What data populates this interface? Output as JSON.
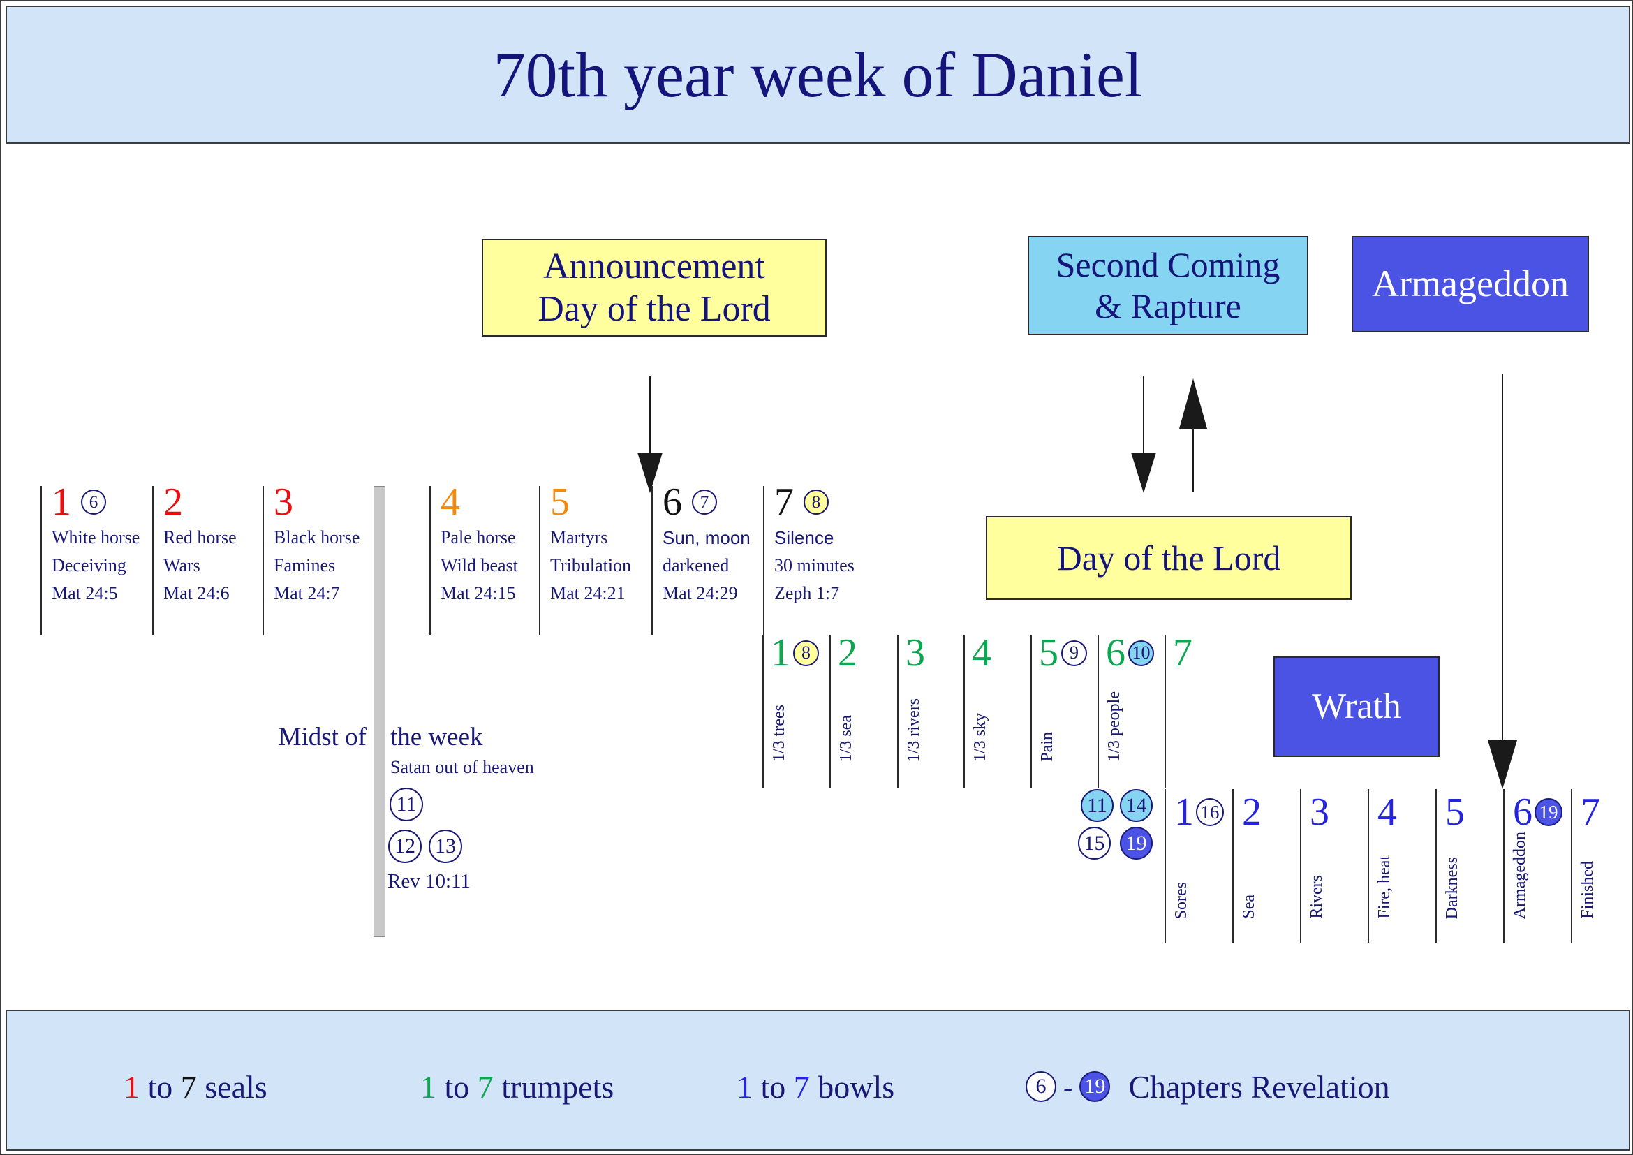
{
  "title": "70th year week of Daniel",
  "colors": {
    "band_background": "#d2e4f8",
    "navy_text": "#191975",
    "seal_red": "#e90f0f",
    "seal_orange": "#f5890a",
    "seal_black": "#111111",
    "trumpet_green": "#0ca750",
    "bowl_blue": "#2424e0",
    "chapter_yellow": "#ffff9e",
    "chapter_skyblue": "#85d4f2",
    "chapter_indigo": "#4b53e4",
    "midweek_bar_gray": "#c9c9c9"
  },
  "boxes": {
    "announcement": {
      "line1": "Announcement",
      "line2": "Day of the Lord"
    },
    "second_coming": {
      "line1": "Second Coming",
      "line2": "& Rapture"
    },
    "armageddon": {
      "label": "Armageddon"
    },
    "day_of_the_lord": {
      "label": "Day of the Lord"
    },
    "wrath": {
      "label": "Wrath"
    }
  },
  "seals": [
    {
      "number": "1",
      "color": "red",
      "chapter": {
        "num": "6",
        "style": "outline"
      },
      "lines": [
        "White horse",
        "Deceiving",
        "Mat 24:5"
      ]
    },
    {
      "number": "2",
      "color": "red",
      "lines": [
        "Red horse",
        "Wars",
        "Mat 24:6"
      ]
    },
    {
      "number": "3",
      "color": "red",
      "lines": [
        "Black horse",
        "Famines",
        "Mat 24:7"
      ]
    },
    {
      "number": "4",
      "color": "orange",
      "lines": [
        "Pale horse",
        "Wild beast",
        "Mat 24:15"
      ]
    },
    {
      "number": "5",
      "color": "orange",
      "lines": [
        "Martyrs",
        "Tribulation",
        "Mat 24:21"
      ]
    },
    {
      "number": "6",
      "color": "black",
      "chapter": {
        "num": "7",
        "style": "outline"
      },
      "lines": [
        "Sun, moon",
        "darkened",
        "Mat 24:29"
      ]
    },
    {
      "number": "7",
      "color": "black",
      "chapter": {
        "num": "8",
        "style": "yellow"
      },
      "lines": [
        "Silence",
        "30 minutes",
        "Zeph 1:7"
      ]
    }
  ],
  "trumpets": [
    {
      "number": "1",
      "chapter": {
        "num": "8",
        "style": "yellow"
      },
      "label": "1/3 trees"
    },
    {
      "number": "2",
      "label": "1/3 sea"
    },
    {
      "number": "3",
      "label": "1/3 rivers"
    },
    {
      "number": "4",
      "label": "1/3 sky"
    },
    {
      "number": "5",
      "chapter": {
        "num": "9",
        "style": "outline"
      },
      "label": "Pain"
    },
    {
      "number": "6",
      "chapter": {
        "num": "10",
        "style": "skyblue"
      },
      "label": "1/3 people"
    },
    {
      "number": "7",
      "label": ""
    }
  ],
  "bowls": [
    {
      "number": "1",
      "chapter": {
        "num": "16",
        "style": "outline"
      },
      "label": "Sores"
    },
    {
      "number": "2",
      "label": "Sea"
    },
    {
      "number": "3",
      "label": "Rivers"
    },
    {
      "number": "4",
      "label": "Fire, heat"
    },
    {
      "number": "5",
      "label": "Darkness"
    },
    {
      "number": "6",
      "chapter": {
        "num": "19",
        "style": "indigo"
      },
      "label": "Armageddon"
    },
    {
      "number": "7",
      "label": "Finished"
    }
  ],
  "midweek": {
    "label_left": "Midst of",
    "label_right": "the week",
    "subtitle": "Satan out of heaven",
    "chapters": [
      {
        "num": "11",
        "style": "outline"
      },
      {
        "num": "12",
        "style": "outline"
      },
      {
        "num": "13",
        "style": "outline"
      }
    ],
    "reference": "Rev 10:11"
  },
  "transition_chapters": [
    {
      "num": "11",
      "style": "skyblue"
    },
    {
      "num": "14",
      "style": "skyblue"
    },
    {
      "num": "15",
      "style": "outline"
    },
    {
      "num": "19",
      "style": "indigo"
    }
  ],
  "legend": {
    "seals": {
      "parts": [
        {
          "text": "1",
          "color": "red"
        },
        {
          "text": " to ",
          "color": "navy"
        },
        {
          "text": "7",
          "color": "black"
        },
        {
          "text": " seals",
          "color": "navy"
        }
      ]
    },
    "trumpets": {
      "parts": [
        {
          "text": "1",
          "color": "green"
        },
        {
          "text": " to ",
          "color": "navy"
        },
        {
          "text": "7",
          "color": "green"
        },
        {
          "text": " trumpets",
          "color": "navy"
        }
      ]
    },
    "bowls": {
      "parts": [
        {
          "text": "1",
          "color": "blue"
        },
        {
          "text": " to ",
          "color": "navy"
        },
        {
          "text": "7",
          "color": "blue"
        },
        {
          "text": " bowls",
          "color": "navy"
        }
      ]
    },
    "chapters": {
      "from": {
        "num": "6",
        "style": "outline"
      },
      "separator": "-",
      "to": {
        "num": "19",
        "style": "indigo"
      },
      "label": "Chapters Revelation"
    }
  }
}
